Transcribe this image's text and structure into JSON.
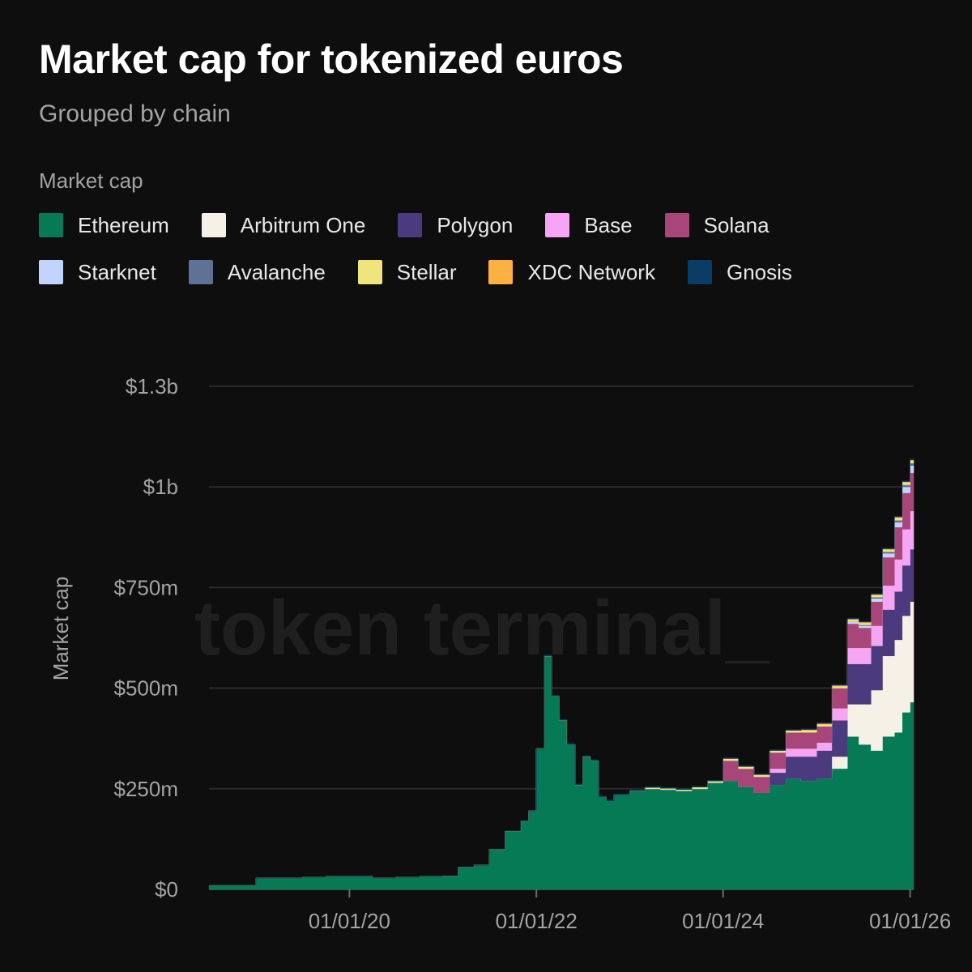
{
  "colors": {
    "background": "#0e0e0e",
    "gridline": "#2a2a2a",
    "text_muted": "#a3a3a3"
  },
  "watermark": "token terminal_",
  "chart_data": {
    "type": "area",
    "title": "Market cap for tokenized euros",
    "subtitle": "Grouped by chain",
    "legend_title": "Market cap",
    "legend_placement": "top-left",
    "ylabel": "Market cap",
    "xlabel": "",
    "ylim": [
      0,
      1300000000
    ],
    "y_ticks": [
      {
        "value": 0,
        "label": "$0"
      },
      {
        "value": 250000000,
        "label": "$250m"
      },
      {
        "value": 500000000,
        "label": "$500m"
      },
      {
        "value": 750000000,
        "label": "$750m"
      },
      {
        "value": 1000000000,
        "label": "$1b"
      },
      {
        "value": 1250000000,
        "label": "$1.3b"
      }
    ],
    "xlim": [
      "2018-07-01",
      "2026-01-15"
    ],
    "x_ticks": [
      {
        "value": "2020-01-01",
        "label": "01/01/20"
      },
      {
        "value": "2022-01-01",
        "label": "01/01/22"
      },
      {
        "value": "2024-01-01",
        "label": "01/01/24"
      },
      {
        "value": "2026-01-01",
        "label": "01/01/26"
      }
    ],
    "grid": true,
    "x": [
      "2018-07-01",
      "2018-10-01",
      "2019-01-01",
      "2019-04-01",
      "2019-07-01",
      "2019-10-01",
      "2020-01-01",
      "2020-04-01",
      "2020-07-01",
      "2020-10-01",
      "2021-01-01",
      "2021-03-01",
      "2021-05-01",
      "2021-07-01",
      "2021-09-01",
      "2021-11-01",
      "2021-12-01",
      "2022-01-01",
      "2022-02-01",
      "2022-03-01",
      "2022-04-01",
      "2022-05-01",
      "2022-06-01",
      "2022-07-01",
      "2022-08-01",
      "2022-09-01",
      "2022-10-01",
      "2022-11-01",
      "2023-01-01",
      "2023-03-01",
      "2023-05-01",
      "2023-07-01",
      "2023-09-01",
      "2023-11-01",
      "2024-01-01",
      "2024-03-01",
      "2024-05-01",
      "2024-07-01",
      "2024-09-01",
      "2024-11-01",
      "2025-01-01",
      "2025-03-01",
      "2025-05-01",
      "2025-06-15",
      "2025-08-01",
      "2025-09-15",
      "2025-11-01",
      "2025-12-01",
      "2026-01-01"
    ],
    "series": [
      {
        "name": "Ethereum",
        "color": "#057a55",
        "values": [
          10,
          10,
          28,
          28,
          30,
          32,
          32,
          28,
          30,
          32,
          33,
          55,
          60,
          100,
          145,
          170,
          195,
          350,
          580,
          480,
          420,
          360,
          260,
          330,
          320,
          230,
          220,
          235,
          245,
          250,
          248,
          245,
          250,
          265,
          270,
          255,
          240,
          260,
          275,
          270,
          275,
          300,
          380,
          360,
          345,
          380,
          390,
          440,
          465
        ]
      },
      {
        "name": "Arbitrum One",
        "color": "#f5f1e6",
        "values": [
          0,
          0,
          0,
          0,
          0,
          0,
          0,
          0,
          0,
          0,
          0,
          0,
          0,
          0,
          0,
          0,
          0,
          0,
          0,
          0,
          0,
          0,
          0,
          0,
          0,
          0,
          0,
          0,
          0,
          0,
          0,
          0,
          0,
          0,
          0,
          0,
          0,
          0,
          0,
          0,
          0,
          30,
          80,
          100,
          150,
          200,
          230,
          240,
          250
        ]
      },
      {
        "name": "Polygon",
        "color": "#4b3a7e",
        "values": [
          0,
          0,
          0,
          0,
          0,
          0,
          0,
          0,
          0,
          0,
          0,
          0,
          0,
          0,
          0,
          0,
          0,
          0,
          0,
          0,
          0,
          0,
          0,
          0,
          0,
          0,
          0,
          0,
          0,
          0,
          0,
          0,
          0,
          0,
          0,
          0,
          0,
          30,
          55,
          60,
          70,
          90,
          100,
          100,
          110,
          115,
          120,
          125,
          130
        ]
      },
      {
        "name": "Base",
        "color": "#f5a5f2",
        "values": [
          0,
          0,
          0,
          0,
          0,
          0,
          0,
          0,
          0,
          0,
          0,
          0,
          0,
          0,
          0,
          0,
          0,
          0,
          0,
          0,
          0,
          0,
          0,
          0,
          0,
          0,
          0,
          0,
          0,
          0,
          0,
          0,
          0,
          0,
          0,
          0,
          0,
          10,
          20,
          20,
          20,
          30,
          40,
          40,
          50,
          60,
          80,
          90,
          95
        ]
      },
      {
        "name": "Solana",
        "color": "#a8467a",
        "values": [
          0,
          0,
          0,
          0,
          0,
          0,
          0,
          0,
          0,
          0,
          0,
          0,
          0,
          0,
          0,
          0,
          0,
          0,
          0,
          0,
          0,
          0,
          0,
          0,
          0,
          0,
          0,
          0,
          0,
          0,
          0,
          0,
          0,
          0,
          50,
          45,
          40,
          40,
          40,
          40,
          40,
          50,
          60,
          50,
          60,
          70,
          80,
          90,
          95
        ]
      },
      {
        "name": "Starknet",
        "color": "#c0d4ff",
        "values": [
          0,
          0,
          0,
          0,
          0,
          0,
          0,
          0,
          0,
          0,
          0,
          0,
          0,
          0,
          0,
          0,
          0,
          0,
          0,
          0,
          0,
          0,
          0,
          0,
          0,
          0,
          0,
          0,
          0,
          0,
          0,
          0,
          0,
          0,
          0,
          0,
          0,
          0,
          0,
          0,
          0,
          0,
          5,
          5,
          8,
          10,
          12,
          15,
          18
        ]
      },
      {
        "name": "Avalanche",
        "color": "#5e7296",
        "values": [
          0,
          0,
          0,
          0,
          0,
          0,
          0,
          0,
          0,
          0,
          0,
          0,
          0,
          0,
          0,
          0,
          0,
          0,
          0,
          0,
          0,
          0,
          0,
          0,
          0,
          0,
          0,
          0,
          0,
          0,
          0,
          0,
          0,
          0,
          0,
          0,
          0,
          0,
          0,
          0,
          0,
          0,
          0,
          2,
          3,
          4,
          5,
          5,
          6
        ]
      },
      {
        "name": "Stellar",
        "color": "#f0e47c",
        "values": [
          0,
          0,
          0,
          0,
          0,
          0,
          0,
          0,
          0,
          0,
          0,
          0,
          0,
          0,
          0,
          0,
          0,
          0,
          0,
          0,
          0,
          0,
          0,
          0,
          0,
          0,
          0,
          0,
          0,
          3,
          3,
          3,
          4,
          4,
          5,
          5,
          5,
          5,
          5,
          5,
          5,
          5,
          5,
          5,
          5,
          5,
          6,
          6,
          6
        ]
      },
      {
        "name": "XDC Network",
        "color": "#fbb040",
        "values": [
          0,
          0,
          0,
          0,
          0,
          0,
          0,
          0,
          0,
          0,
          0,
          0,
          0,
          0,
          0,
          0,
          0,
          0,
          0,
          0,
          0,
          0,
          0,
          0,
          0,
          0,
          0,
          0,
          0,
          0,
          0,
          0,
          0,
          0,
          0,
          0,
          0,
          0,
          0,
          2,
          2,
          2,
          2,
          2,
          2,
          2,
          2,
          2,
          2
        ]
      },
      {
        "name": "Gnosis",
        "color": "#0a3d66",
        "values": [
          0,
          0,
          0,
          0,
          0,
          0,
          0,
          0,
          0,
          0,
          0,
          0,
          0,
          0,
          0,
          0,
          0,
          0,
          2,
          2,
          2,
          2,
          2,
          2,
          2,
          2,
          2,
          2,
          2,
          2,
          2,
          2,
          2,
          2,
          2,
          2,
          2,
          2,
          2,
          2,
          2,
          2,
          2,
          2,
          2,
          2,
          2,
          2,
          2
        ]
      }
    ],
    "units": "millions"
  }
}
